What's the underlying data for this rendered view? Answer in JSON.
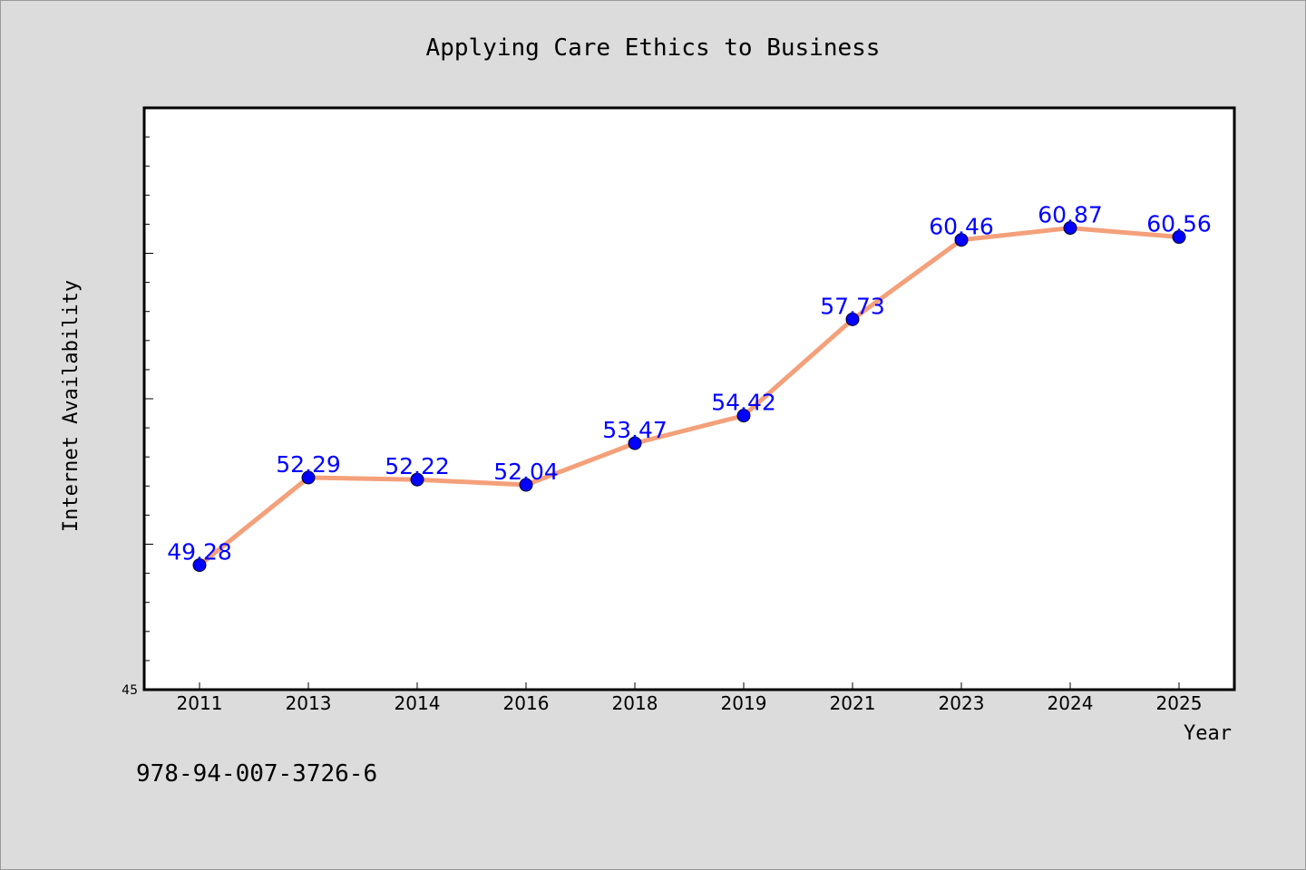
{
  "chart_data": {
    "type": "line",
    "title": "Applying Care Ethics to Business",
    "xlabel": "Year",
    "ylabel": "Internet Availability",
    "categories": [
      "2011",
      "2013",
      "2014",
      "2016",
      "2018",
      "2019",
      "2021",
      "2023",
      "2024",
      "2025"
    ],
    "series": [
      {
        "values": [
          49.28,
          52.29,
          52.22,
          52.04,
          53.47,
          54.42,
          57.73,
          60.46,
          60.87,
          60.56
        ]
      }
    ],
    "data_labels": [
      "49.28",
      "52.29",
      "52.22",
      "52.04",
      "53.47",
      "54.42",
      "57.73",
      "60.46",
      "60.87",
      "60.56"
    ],
    "ylim": [
      45,
      65
    ],
    "y_min_label": "45",
    "grid": false,
    "line_color": "#f4a07a",
    "marker_color": "#0000ff",
    "label_color": "#0000ff"
  },
  "footer": {
    "isbn": "978-94-007-3726-6"
  }
}
